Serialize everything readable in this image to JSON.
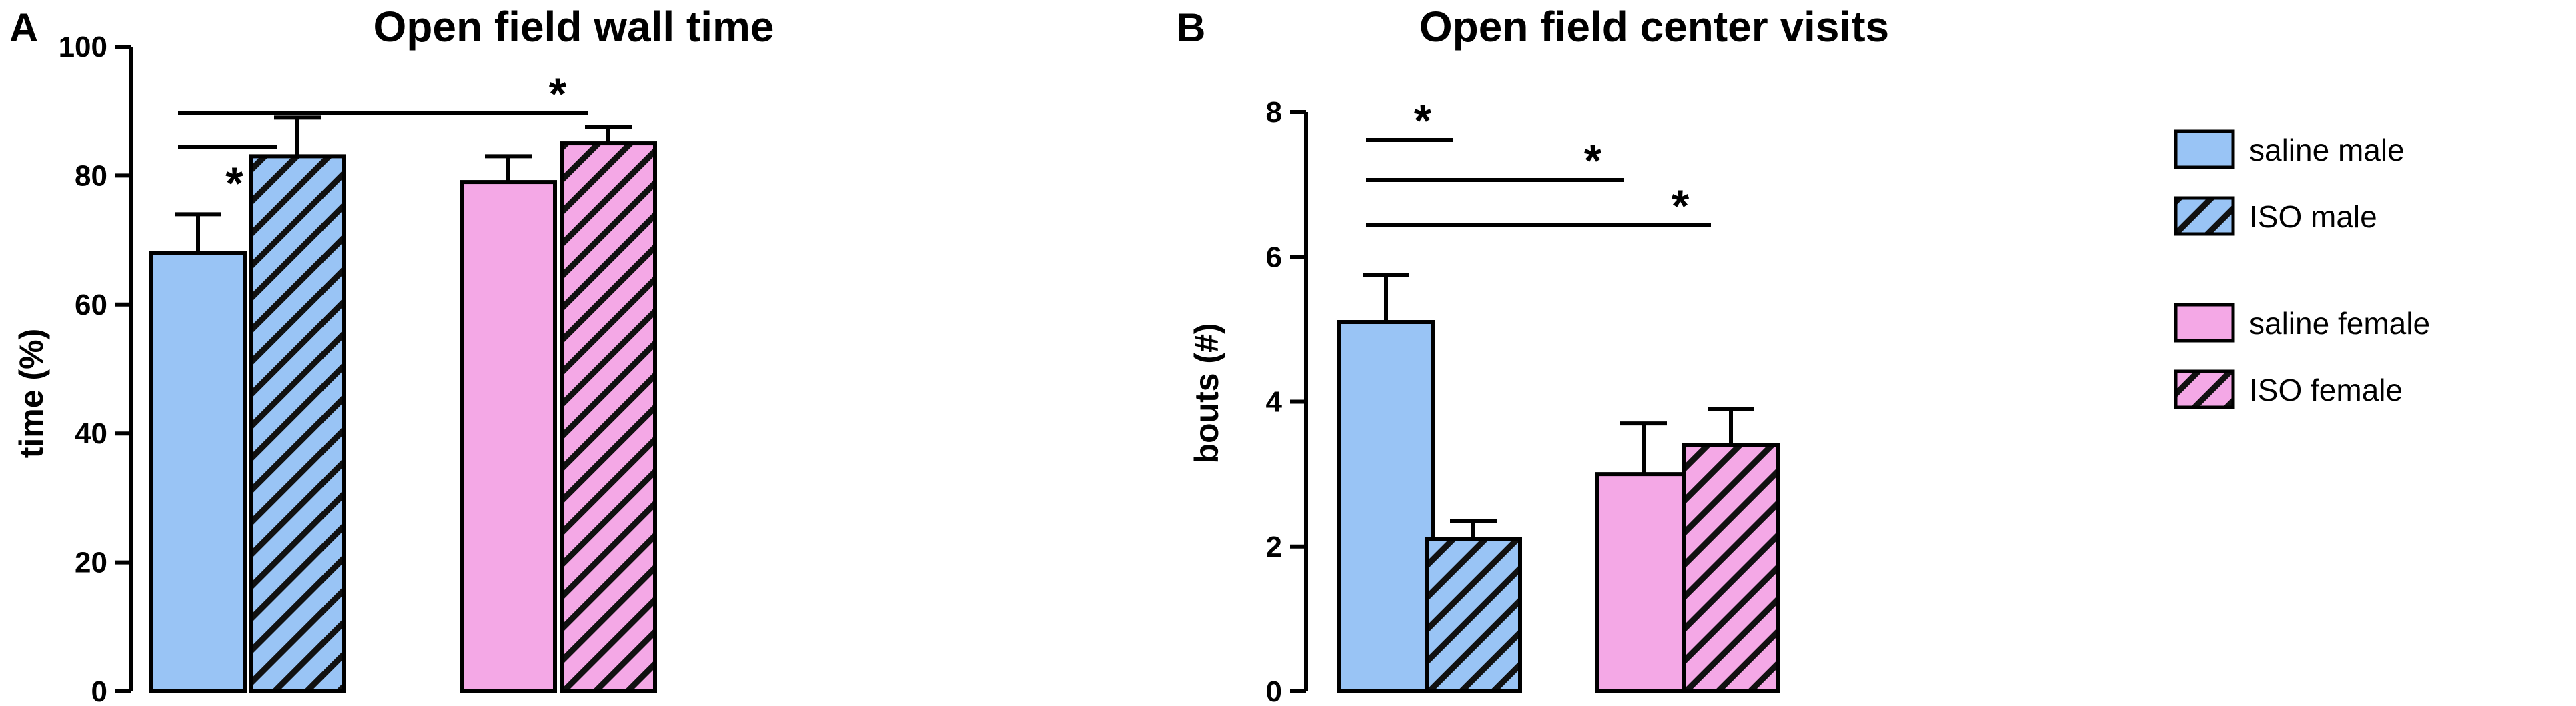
{
  "figure": {
    "panels": [
      {
        "letter": "A"
      },
      {
        "letter": "B"
      }
    ],
    "legend": [
      {
        "name": "saline male",
        "color": "#99c4f5",
        "pattern": "solid"
      },
      {
        "name": "ISO male",
        "color": "#99c4f5",
        "pattern": "hatched"
      },
      {
        "name": "saline female",
        "color": "#f4a8e6",
        "pattern": "solid"
      },
      {
        "name": "ISO female",
        "color": "#f4a8e6",
        "pattern": "hatched"
      }
    ]
  },
  "chart_data": [
    {
      "type": "bar",
      "title": "Open field wall time",
      "ylabel": "time (%)",
      "xlabel": "",
      "ylim": [
        0,
        100
      ],
      "yticks": [
        "0",
        "20",
        "40",
        "60",
        "80",
        "100"
      ],
      "grid": false,
      "categories": [
        "saline male",
        "ISO male",
        "saline female",
        "ISO female"
      ],
      "values": [
        68,
        83,
        79,
        85
      ],
      "errors": [
        6,
        6,
        4,
        2.5
      ],
      "significance": [
        {
          "from": 0,
          "to": 3,
          "label": "*"
        },
        {
          "from": 0,
          "to": 1,
          "label": "*"
        }
      ]
    },
    {
      "type": "bar",
      "title": "Open field center visits",
      "ylabel": "bouts (#)",
      "xlabel": "",
      "ylim": [
        0,
        8
      ],
      "yticks": [
        "0",
        "2",
        "4",
        "6",
        "8"
      ],
      "grid": false,
      "categories": [
        "saline male",
        "ISO male",
        "saline female",
        "ISO female"
      ],
      "values": [
        5.1,
        2.1,
        3.0,
        3.4
      ],
      "errors": [
        0.65,
        0.25,
        0.7,
        0.5
      ],
      "significance": [
        {
          "from": 0,
          "to": 1,
          "label": "*"
        },
        {
          "from": 0,
          "to": 2,
          "label": "*"
        },
        {
          "from": 0,
          "to": 3,
          "label": "*"
        }
      ]
    }
  ]
}
